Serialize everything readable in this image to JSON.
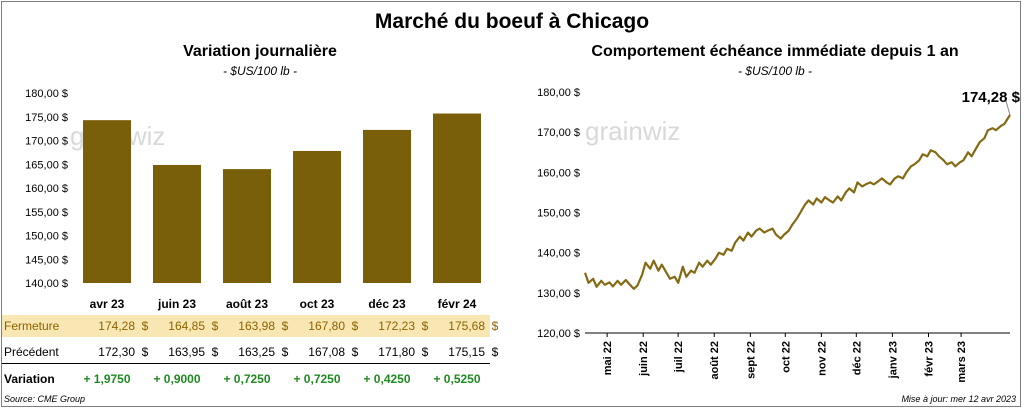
{
  "title": "Marché du boeuf à Chicago",
  "left_chart": {
    "title": "Variation  journalière",
    "subtitle": "- $US/100 lb -",
    "watermark": "grainwiz"
  },
  "right_chart": {
    "title": "Comportement  échéance immédiate depuis 1 an",
    "subtitle": "- $US/100 lb -",
    "watermark": "grainwiz",
    "last_label": "174,28 $"
  },
  "table": {
    "close_label": "Fermeture",
    "prev_label": "Précédent",
    "var_label": "Variation",
    "close": [
      "174,28",
      "164,85",
      "163,98",
      "167,80",
      "172,23",
      "175,68"
    ],
    "prev": [
      "172,30",
      "163,95",
      "163,25",
      "167,08",
      "171,80",
      "175,15"
    ],
    "var": [
      "+ 1,9750",
      "+ 0,9000",
      "+ 0,7250",
      "+ 0,7250",
      "+ 0,4250",
      "+ 0,5250"
    ],
    "dollar": "$"
  },
  "footer": {
    "source": "Source: CME Group",
    "updated": "Mise à jour: mer 12 avr 2023"
  },
  "colors": {
    "bar": "#7a5f0a",
    "line": "#856a14",
    "close_row_bg": "#f8e7b2",
    "positive": "#1f8a20"
  },
  "chart_data": [
    {
      "type": "bar",
      "title": "Variation  journalière",
      "categories": [
        "avr 23",
        "juin 23",
        "août 23",
        "oct 23",
        "déc 23",
        "févr 24"
      ],
      "values": [
        174.28,
        164.85,
        163.98,
        167.8,
        172.23,
        175.68
      ],
      "ylim": [
        140,
        180
      ],
      "yticks": [
        140,
        145,
        150,
        155,
        160,
        165,
        170,
        175,
        180
      ],
      "ytick_labels": [
        "140,00 $",
        "145,00 $",
        "150,00 $",
        "155,00 $",
        "160,00 $",
        "165,00 $",
        "170,00 $",
        "175,00 $",
        "180,00 $"
      ],
      "grid": false
    },
    {
      "type": "line",
      "title": "Comportement  échéance immédiate depuis 1 an",
      "xlabels": [
        "mai 22",
        "juin 22",
        "juil 22",
        "août 22",
        "sept 22",
        "oct 22",
        "nov 22",
        "déc 22",
        "janv 23",
        "févr 23",
        "mars 23"
      ],
      "ylim": [
        120,
        180
      ],
      "yticks": [
        120,
        130,
        140,
        150,
        160,
        170,
        180
      ],
      "ytick_labels": [
        "120,00 $",
        "130,00 $",
        "140,00 $",
        "150,00 $",
        "160,00 $",
        "170,00 $",
        "180,00 $"
      ],
      "x_start": "2022-04-12",
      "x_end": "2023-04-12",
      "series": [
        {
          "points": [
            [
              "2022-04-12",
              135.0
            ],
            [
              "2022-04-15",
              132.5
            ],
            [
              "2022-04-19",
              133.5
            ],
            [
              "2022-04-22",
              131.5
            ],
            [
              "2022-04-26",
              133.0
            ],
            [
              "2022-04-29",
              132.0
            ],
            [
              "2022-05-03",
              132.6
            ],
            [
              "2022-05-06",
              131.6
            ],
            [
              "2022-05-10",
              133.0
            ],
            [
              "2022-05-13",
              132.0
            ],
            [
              "2022-05-17",
              133.2
            ],
            [
              "2022-05-20",
              132.2
            ],
            [
              "2022-05-24",
              131.0
            ],
            [
              "2022-05-27",
              131.8
            ],
            [
              "2022-05-31",
              134.5
            ],
            [
              "2022-06-03",
              137.5
            ],
            [
              "2022-06-07",
              136.0
            ],
            [
              "2022-06-10",
              138.0
            ],
            [
              "2022-06-14",
              135.5
            ],
            [
              "2022-06-17",
              137.0
            ],
            [
              "2022-06-21",
              135.0
            ],
            [
              "2022-06-24",
              133.5
            ],
            [
              "2022-06-28",
              134.0
            ],
            [
              "2022-07-01",
              132.5
            ],
            [
              "2022-07-05",
              136.5
            ],
            [
              "2022-07-08",
              134.0
            ],
            [
              "2022-07-12",
              135.5
            ],
            [
              "2022-07-15",
              135.0
            ],
            [
              "2022-07-19",
              137.5
            ],
            [
              "2022-07-22",
              136.5
            ],
            [
              "2022-07-26",
              138.0
            ],
            [
              "2022-07-29",
              137.0
            ],
            [
              "2022-08-02",
              138.5
            ],
            [
              "2022-08-05",
              140.0
            ],
            [
              "2022-08-09",
              139.5
            ],
            [
              "2022-08-12",
              141.0
            ],
            [
              "2022-08-16",
              140.5
            ],
            [
              "2022-08-19",
              142.5
            ],
            [
              "2022-08-23",
              144.0
            ],
            [
              "2022-08-26",
              143.0
            ],
            [
              "2022-08-30",
              145.0
            ],
            [
              "2022-09-02",
              144.0
            ],
            [
              "2022-09-06",
              145.5
            ],
            [
              "2022-09-09",
              146.0
            ],
            [
              "2022-09-13",
              145.0
            ],
            [
              "2022-09-16",
              145.5
            ],
            [
              "2022-09-20",
              146.0
            ],
            [
              "2022-09-23",
              144.5
            ],
            [
              "2022-09-27",
              143.5
            ],
            [
              "2022-09-30",
              144.5
            ],
            [
              "2022-10-04",
              145.5
            ],
            [
              "2022-10-07",
              147.0
            ],
            [
              "2022-10-11",
              148.5
            ],
            [
              "2022-10-14",
              150.0
            ],
            [
              "2022-10-18",
              152.0
            ],
            [
              "2022-10-21",
              153.0
            ],
            [
              "2022-10-25",
              152.0
            ],
            [
              "2022-10-28",
              153.5
            ],
            [
              "2022-11-01",
              152.5
            ],
            [
              "2022-11-04",
              153.8
            ],
            [
              "2022-11-08",
              153.0
            ],
            [
              "2022-11-11",
              152.5
            ],
            [
              "2022-11-15",
              154.0
            ],
            [
              "2022-11-18",
              153.0
            ],
            [
              "2022-11-22",
              155.0
            ],
            [
              "2022-11-25",
              156.0
            ],
            [
              "2022-11-29",
              155.0
            ],
            [
              "2022-12-02",
              157.5
            ],
            [
              "2022-12-06",
              156.5
            ],
            [
              "2022-12-09",
              157.0
            ],
            [
              "2022-12-13",
              157.5
            ],
            [
              "2022-12-16",
              157.0
            ],
            [
              "2022-12-20",
              157.8
            ],
            [
              "2022-12-23",
              158.5
            ],
            [
              "2022-12-27",
              157.5
            ],
            [
              "2022-12-30",
              157.0
            ],
            [
              "2023-01-03",
              158.5
            ],
            [
              "2023-01-06",
              159.0
            ],
            [
              "2023-01-10",
              158.5
            ],
            [
              "2023-01-13",
              160.0
            ],
            [
              "2023-01-17",
              161.5
            ],
            [
              "2023-01-20",
              162.0
            ],
            [
              "2023-01-24",
              163.0
            ],
            [
              "2023-01-27",
              164.5
            ],
            [
              "2023-01-31",
              164.0
            ],
            [
              "2023-02-03",
              165.5
            ],
            [
              "2023-02-07",
              165.0
            ],
            [
              "2023-02-10",
              164.0
            ],
            [
              "2023-02-14",
              163.0
            ],
            [
              "2023-02-17",
              162.0
            ],
            [
              "2023-02-21",
              162.5
            ],
            [
              "2023-02-24",
              161.5
            ],
            [
              "2023-02-28",
              162.5
            ],
            [
              "2023-03-03",
              163.0
            ],
            [
              "2023-03-07",
              165.0
            ],
            [
              "2023-03-10",
              164.0
            ],
            [
              "2023-03-14",
              166.0
            ],
            [
              "2023-03-17",
              167.5
            ],
            [
              "2023-03-21",
              168.5
            ],
            [
              "2023-03-24",
              170.5
            ],
            [
              "2023-03-28",
              171.0
            ],
            [
              "2023-03-31",
              170.5
            ],
            [
              "2023-04-04",
              171.5
            ],
            [
              "2023-04-07",
              172.0
            ],
            [
              "2023-04-12",
              174.28
            ]
          ]
        }
      ],
      "grid": false
    }
  ]
}
